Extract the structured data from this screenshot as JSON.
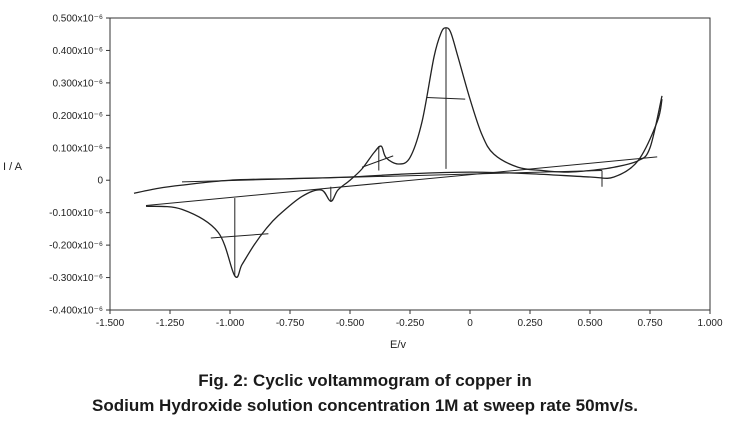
{
  "chart_data": {
    "type": "line",
    "title": "",
    "xlabel": "E/v",
    "ylabel": "I / A",
    "xlim": [
      -1.5,
      1.0
    ],
    "ylim": [
      -0.4,
      0.5
    ],
    "y_scale_note": "x10^-6",
    "x_ticks": [
      "-1.500",
      "-1.250",
      "-1.000",
      "-0.750",
      "-0.500",
      "-0.250",
      "0",
      "0.250",
      "0.500",
      "0.750",
      "1.000"
    ],
    "y_ticks": [
      "0.500x10⁻⁶",
      "0.400x10⁻⁶",
      "0.300x10⁻⁶",
      "0.200x10⁻⁶",
      "0.100x10⁻⁶",
      "0",
      "-0.100x10⁻⁶",
      "-0.200x10⁻⁶",
      "-0.300x10⁻⁶",
      "-0.400x10⁻⁶"
    ],
    "grid": false,
    "series": [
      {
        "x": [
          -1.35,
          -1.2,
          -1.05,
          -0.98,
          -0.95,
          -0.9,
          -0.85,
          -0.8,
          -0.7,
          -0.62,
          -0.58,
          -0.55,
          -0.5,
          -0.45,
          -0.4,
          -0.37,
          -0.35,
          -0.3,
          -0.25,
          -0.2,
          -0.15,
          -0.12,
          -0.1,
          -0.08,
          -0.05,
          0.0,
          0.05,
          0.1,
          0.2,
          0.3,
          0.4,
          0.5,
          0.6,
          0.7,
          0.75,
          0.8
        ],
        "y": [
          -0.08,
          -0.09,
          -0.16,
          -0.295,
          -0.26,
          -0.2,
          -0.15,
          -0.11,
          -0.05,
          -0.03,
          -0.065,
          -0.03,
          0.0,
          0.035,
          0.085,
          0.105,
          0.07,
          0.05,
          0.07,
          0.18,
          0.38,
          0.455,
          0.47,
          0.455,
          0.38,
          0.25,
          0.14,
          0.08,
          0.04,
          0.03,
          0.025,
          0.03,
          0.04,
          0.06,
          0.1,
          0.26
        ]
      },
      {
        "x": [
          -1.4,
          -1.3,
          -1.2,
          -1.0,
          -0.75,
          -0.5,
          -0.25,
          0.0,
          0.25,
          0.5,
          0.6,
          0.7,
          0.78,
          0.8
        ],
        "y": [
          -0.04,
          -0.025,
          -0.015,
          0.0,
          0.005,
          0.01,
          0.02,
          0.025,
          0.02,
          0.01,
          0.01,
          0.06,
          0.18,
          0.25
        ]
      }
    ],
    "annotation_lines": [
      {
        "x": [
          -0.98,
          -0.98
        ],
        "y": [
          -0.295,
          -0.055
        ]
      },
      {
        "x": [
          -1.08,
          -0.84
        ],
        "y": [
          -0.178,
          -0.165
        ]
      },
      {
        "x": [
          -1.35,
          0.78
        ],
        "y": [
          -0.078,
          0.072
        ]
      },
      {
        "x": [
          -0.38,
          -0.38
        ],
        "y": [
          0.105,
          0.03
        ]
      },
      {
        "x": [
          -0.45,
          -0.32
        ],
        "y": [
          0.04,
          0.075
        ]
      },
      {
        "x": [
          -0.58,
          -0.58
        ],
        "y": [
          -0.065,
          -0.02
        ]
      },
      {
        "x": [
          -0.1,
          -0.1
        ],
        "y": [
          0.47,
          0.035
        ]
      },
      {
        "x": [
          -0.18,
          -0.02
        ],
        "y": [
          0.255,
          0.25
        ]
      },
      {
        "x": [
          -1.2,
          0.55
        ],
        "y": [
          -0.005,
          0.03
        ]
      },
      {
        "x": [
          0.55,
          0.55
        ],
        "y": [
          0.03,
          -0.02
        ]
      }
    ]
  },
  "caption": {
    "line1": "Fig. 2: Cyclic voltammogram of copper in",
    "line2": "Sodium Hydroxide solution concentration 1M at sweep rate 50mv/s."
  }
}
